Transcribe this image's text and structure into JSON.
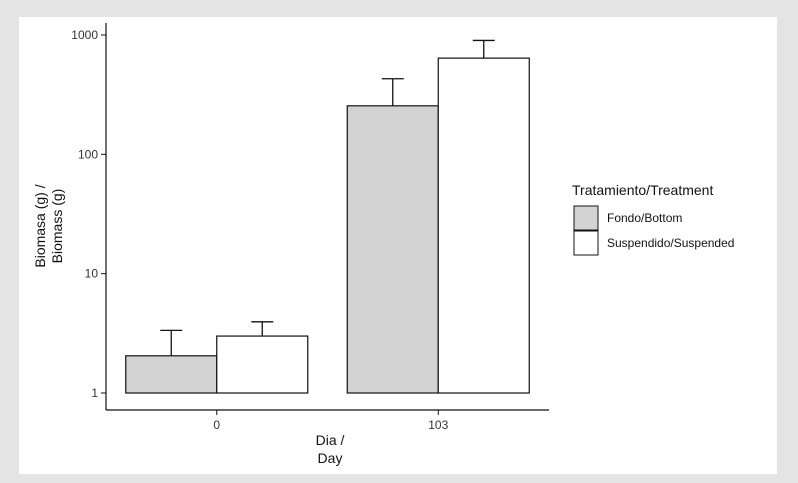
{
  "chart_data": {
    "type": "bar",
    "scale_y": "log10",
    "ylim": [
      1,
      1000
    ],
    "y_ticks": [
      1,
      10,
      100,
      1000
    ],
    "y_tick_labels": [
      "1",
      "10",
      "100",
      "1000"
    ],
    "categories": [
      "0",
      "103"
    ],
    "xlabel": [
      "Dia /",
      "Day"
    ],
    "ylabel": [
      "Biomasa (g) /",
      "Biomass (g)"
    ],
    "legend_title": "Tratamiento/Treatment",
    "legend_position": "right",
    "grid": false,
    "series": [
      {
        "name": "Fondo/Bottom",
        "color": "#d3d3d3",
        "values": [
          2.05,
          255
        ],
        "error_upper": [
          3.35,
          430
        ]
      },
      {
        "name": "Suspendido/Suspended",
        "color": "#ffffff",
        "values": [
          3.0,
          640
        ],
        "error_upper": [
          3.95,
          900
        ]
      }
    ]
  }
}
